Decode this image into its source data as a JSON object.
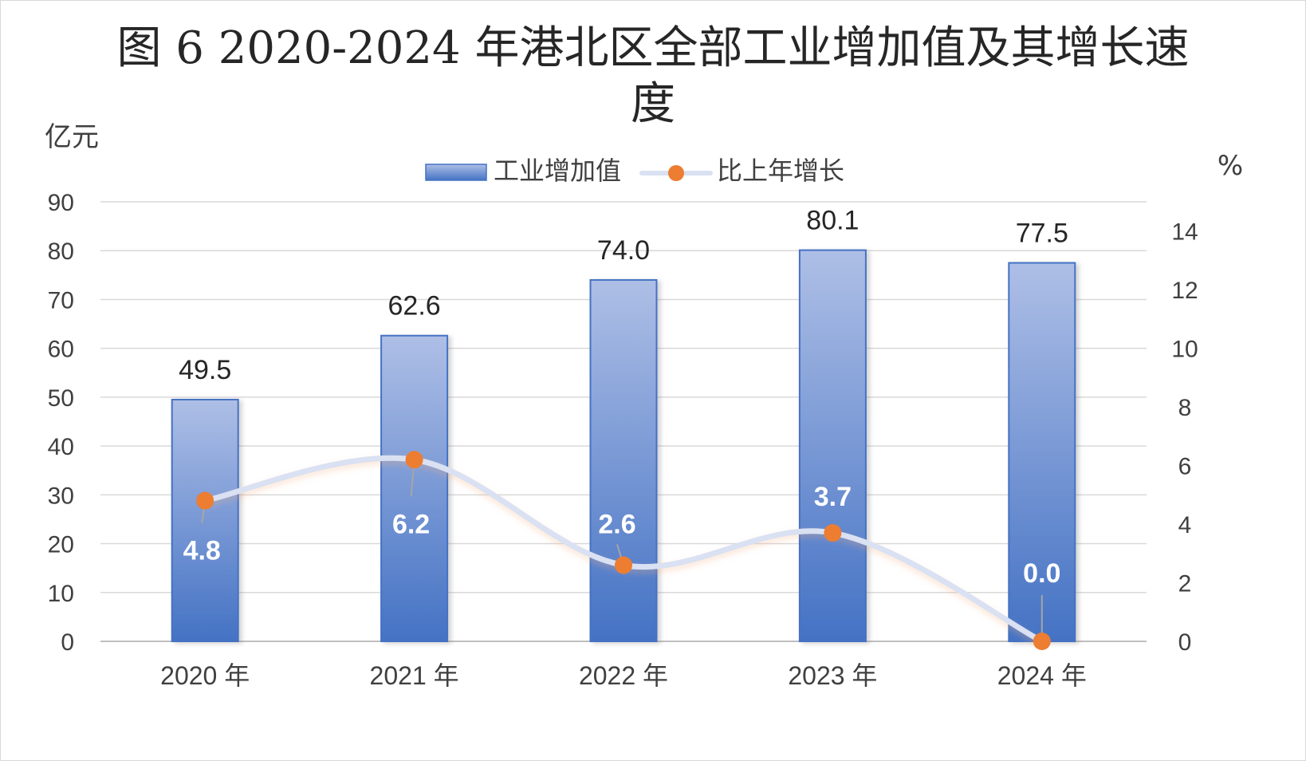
{
  "chart_data": {
    "type": "bar",
    "title_line1": "图 6 2020-2024 年港北区全部工业增加值及其增长速",
    "title_line2": "度",
    "ylabel_left": "亿元",
    "ylabel_right": "%",
    "categories": [
      "2020 年",
      "2021 年",
      "2022 年",
      "2023 年",
      "2024 年"
    ],
    "series": [
      {
        "name": "工业增加值",
        "type": "bar",
        "axis": "left",
        "values": [
          49.5,
          62.6,
          74.0,
          80.1,
          77.5
        ],
        "labels": [
          "49.5",
          "62.6",
          "74.0",
          "80.1",
          "77.5"
        ]
      },
      {
        "name": "比上年增长",
        "type": "line",
        "axis": "right",
        "smooth": true,
        "values": [
          4.8,
          6.2,
          2.6,
          3.7,
          0.0
        ],
        "labels": [
          "4.8",
          "6.2",
          "2.6",
          "3.7",
          "0.0"
        ]
      }
    ],
    "y_left": {
      "min": 0,
      "max": 90,
      "step": 10,
      "ticks": [
        "0",
        "10",
        "20",
        "30",
        "40",
        "50",
        "60",
        "70",
        "80",
        "90"
      ]
    },
    "y_right": {
      "min": 0,
      "max": 15,
      "step": 2,
      "ticks": [
        "0",
        "2",
        "4",
        "6",
        "8",
        "10",
        "12",
        "14"
      ]
    },
    "grid": true,
    "legend_position": "top-center",
    "colors": {
      "bar_top": "#aebfe6",
      "bar_bottom": "#4472c4",
      "bar_border": "#4472c4",
      "line": "#d9e1f2",
      "marker": "#ed7d31",
      "grid": "#d9d9d9",
      "axis": "#d9d9d9"
    }
  }
}
